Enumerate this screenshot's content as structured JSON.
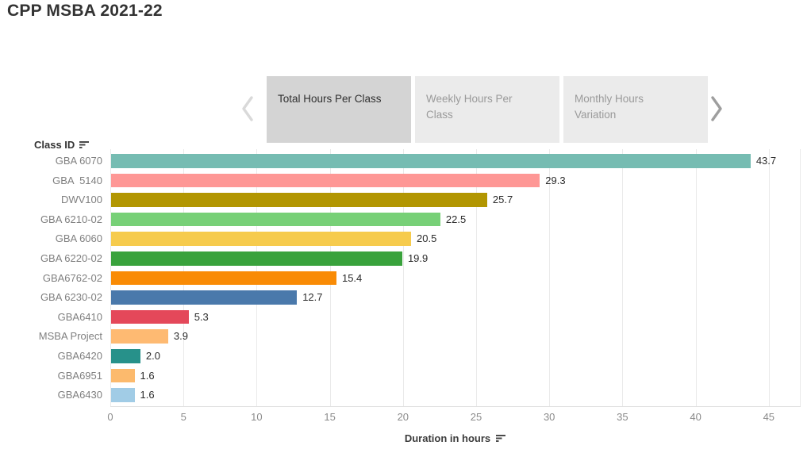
{
  "title": "CPP MSBA 2021-22",
  "navigator": {
    "prev_icon": "chevron-left",
    "next_icon": "chevron-right",
    "tabs": [
      {
        "label": "Total Hours Per Class",
        "lines": [
          "Total Hours Per Class"
        ],
        "active": true
      },
      {
        "label": "Weekly Hours Per Class",
        "lines": [
          "Weekly Hours Per",
          "Class"
        ],
        "active": false
      },
      {
        "label": "Monthly Hours Variation",
        "lines": [
          "Monthly Hours",
          "Variation"
        ],
        "active": false
      }
    ]
  },
  "colors": {
    "active_tab_bg": "#d4d4d4",
    "inactive_tab_bg": "#ebebeb",
    "active_tab_text": "#303030",
    "inactive_tab_text": "#9a9a9a",
    "prev_arrow": "#d9d9d9",
    "next_arrow": "#9e9e9e",
    "gridline": "#eaeaea",
    "axis_text": "#8b8b8b",
    "category_text": "#7f7f7f",
    "value_text": "#2b2b2b"
  },
  "chart_data": {
    "type": "bar",
    "orientation": "horizontal",
    "y_axis_label": "Class ID",
    "y_axis_sort_icon": "sort-descending-icon",
    "x_axis_label": "Duration in hours",
    "x_axis_sort_icon": "sort-descending-icon",
    "x_ticks": [
      0,
      5,
      10,
      15,
      20,
      25,
      30,
      35,
      40,
      45
    ],
    "x_range": [
      0,
      47.2
    ],
    "grid": true,
    "legend": false,
    "categories": [
      "GBA 6070",
      "GBA  5140",
      "DWV100",
      "GBA 6210-02",
      "GBA 6060",
      "GBA 6220-02",
      "GBA6762-02",
      "GBA 6230-02",
      "GBA6410",
      "MSBA Project",
      "GBA6420",
      "GBA6951",
      "GBA6430"
    ],
    "values": [
      43.7,
      29.3,
      25.7,
      22.5,
      20.5,
      19.9,
      15.4,
      12.7,
      5.3,
      3.9,
      2.0,
      1.6,
      1.6
    ],
    "value_labels": [
      "43.7",
      "29.3",
      "25.7",
      "22.5",
      "20.5",
      "19.9",
      "15.4",
      "12.7",
      "5.3",
      "3.9",
      "2.0",
      "1.6",
      "1.6"
    ],
    "bar_colors": [
      "#76bcb2",
      "#fe9795",
      "#b29601",
      "#77d077",
      "#f6cb4d",
      "#39a23c",
      "#f98b05",
      "#4a79ab",
      "#e4485a",
      "#feba72",
      "#27918a",
      "#fcba6d",
      "#a1cce6"
    ]
  }
}
